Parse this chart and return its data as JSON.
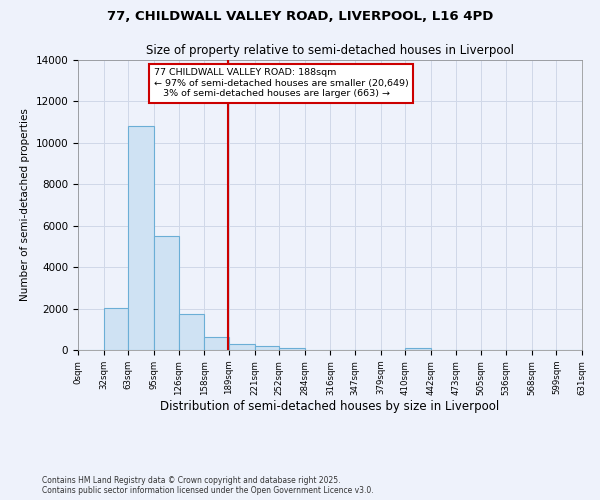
{
  "title": "77, CHILDWALL VALLEY ROAD, LIVERPOOL, L16 4PD",
  "subtitle": "Size of property relative to semi-detached houses in Liverpool",
  "xlabel": "Distribution of semi-detached houses by size in Liverpool",
  "ylabel": "Number of semi-detached properties",
  "bin_edges": [
    0,
    32,
    63,
    95,
    126,
    158,
    189,
    221,
    252,
    284,
    316,
    347,
    379,
    410,
    442,
    473,
    505,
    536,
    568,
    599,
    631
  ],
  "bar_heights": [
    0,
    2050,
    10800,
    5500,
    1750,
    650,
    300,
    200,
    100,
    0,
    0,
    0,
    0,
    100,
    0,
    0,
    0,
    0,
    0,
    0
  ],
  "property_size": 188,
  "bar_color": "#cfe2f3",
  "bar_edge_color": "#6baed6",
  "red_line_color": "#cc0000",
  "background_color": "#eef2fb",
  "grid_color": "#d0d8e8",
  "annotation_text": "77 CHILDWALL VALLEY ROAD: 188sqm\n← 97% of semi-detached houses are smaller (20,649)\n   3% of semi-detached houses are larger (663) →",
  "annotation_box_color": "#cc0000",
  "footnote1": "Contains HM Land Registry data © Crown copyright and database right 2025.",
  "footnote2": "Contains public sector information licensed under the Open Government Licence v3.0.",
  "ylim": [
    0,
    14000
  ],
  "tick_labels": [
    "0sqm",
    "32sqm",
    "63sqm",
    "95sqm",
    "126sqm",
    "158sqm",
    "189sqm",
    "221sqm",
    "252sqm",
    "284sqm",
    "316sqm",
    "347sqm",
    "379sqm",
    "410sqm",
    "442sqm",
    "473sqm",
    "505sqm",
    "536sqm",
    "568sqm",
    "599sqm",
    "631sqm"
  ]
}
